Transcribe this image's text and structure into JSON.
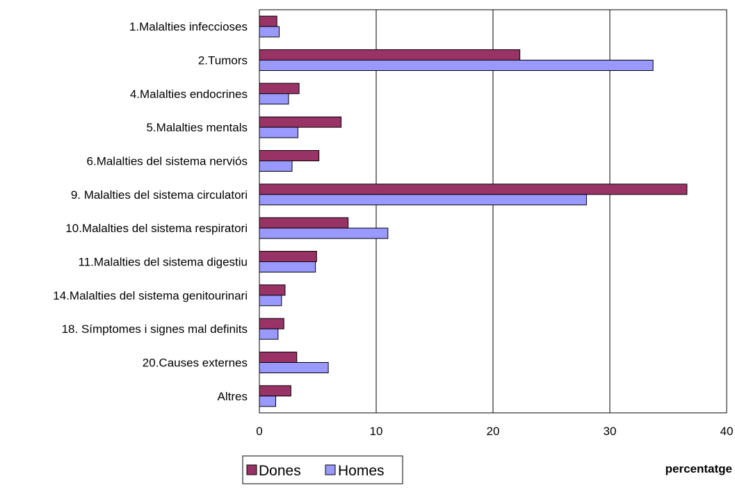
{
  "chart_data": {
    "type": "bar",
    "orientation": "horizontal",
    "title": "",
    "xlabel": "percentatge",
    "ylabel": "",
    "xlim": [
      0,
      40
    ],
    "xticks": [
      0,
      10,
      20,
      30,
      40
    ],
    "grid": true,
    "legend_position": "bottom-left",
    "categories": [
      "1.Malalties infeccioses",
      "2.Tumors",
      "4.Malalties endocrines",
      "5.Malalties mentals",
      "6.Malalties del sistema nerviós",
      "9. Malalties del sistema circulatori",
      "10.Malalties del sistema respiratori",
      "11.Malalties del sistema digestiu",
      "14.Malalties del sistema genitourinari",
      "18. Símptomes i signes mal definits",
      "20.Causes externes",
      "Altres"
    ],
    "series": [
      {
        "name": "Dones",
        "color": "#993366",
        "values": [
          1.5,
          22.3,
          3.4,
          7.0,
          5.1,
          36.6,
          7.6,
          4.9,
          2.2,
          2.1,
          3.2,
          2.7
        ]
      },
      {
        "name": "Homes",
        "color": "#9999FF",
        "values": [
          1.7,
          33.7,
          2.5,
          3.3,
          2.8,
          28.0,
          11.0,
          4.8,
          1.9,
          1.6,
          5.9,
          1.4
        ]
      }
    ]
  }
}
